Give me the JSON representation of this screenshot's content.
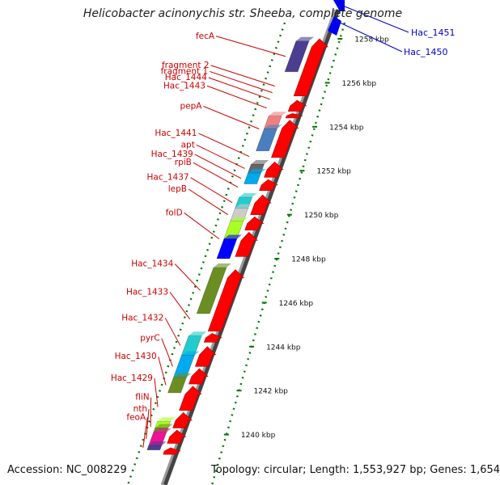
{
  "title": "Helicobacter acinonychis str. Sheeba, complete genome",
  "footer": {
    "accession": "Accession: NC_008229",
    "topology": "Topology: circular; Length: 1,553,927 bp; Genes: 1,654"
  },
  "colors": {
    "forward_gene": "#ff0000",
    "label_red": "#cc0000",
    "label_blue": "#0000cc",
    "tick_green": "#007700",
    "backbone": "#8a8a8a"
  },
  "axis": {
    "range_kbp": [
      1239,
      1259
    ],
    "unit": "kbp"
  },
  "ticks": [
    {
      "label": "1240 kbp",
      "kbp": 1240
    },
    {
      "label": "1242 kbp",
      "kbp": 1242
    },
    {
      "label": "1244 kbp",
      "kbp": 1244
    },
    {
      "label": "1246 kbp",
      "kbp": 1246
    },
    {
      "label": "1248 kbp",
      "kbp": 1248
    },
    {
      "label": "1250 kbp",
      "kbp": 1250
    },
    {
      "label": "1252 kbp",
      "kbp": 1252
    },
    {
      "label": "1254 kbp",
      "kbp": 1254
    },
    {
      "label": "1256 kbp",
      "kbp": 1256
    },
    {
      "label": "1258 kbp",
      "kbp": 1258
    }
  ],
  "features_reverse": [
    {
      "label": "fecA",
      "color": "#4b3d8f",
      "start_kbp": 1256.5,
      "end_kbp": 1257.9
    },
    {
      "label": "fragment 2",
      "color": null,
      "start_kbp": 1255.8,
      "end_kbp": 1255.9
    },
    {
      "label": "fragment 1",
      "color": null,
      "start_kbp": 1255.5,
      "end_kbp": 1255.6
    },
    {
      "label": "Hac_1444",
      "color": null,
      "start_kbp": 1255.2,
      "end_kbp": 1255.3
    },
    {
      "label": "Hac_1443",
      "color": null,
      "start_kbp": 1254.8,
      "end_kbp": 1254.9
    },
    {
      "label": "pepA",
      "color": "#f08080",
      "start_kbp": 1253.9,
      "end_kbp": 1254.5
    },
    {
      "label": "pepA",
      "color": "#4a7fbf",
      "start_kbp": 1252.9,
      "end_kbp": 1253.9
    },
    {
      "label": "Hac_1441",
      "color": null,
      "start_kbp": 1252.6,
      "end_kbp": 1252.7
    },
    {
      "label": "apt",
      "color": "#666666",
      "start_kbp": 1251.9,
      "end_kbp": 1252.3
    },
    {
      "label": "Hac_1439",
      "color": "#00aaee",
      "start_kbp": 1251.4,
      "end_kbp": 1251.9
    },
    {
      "label": "rpiB",
      "color": null,
      "start_kbp": 1251.2,
      "end_kbp": 1251.3
    },
    {
      "label": "Hac_1437",
      "color": "#22cccc",
      "start_kbp": 1250.3,
      "end_kbp": 1250.8
    },
    {
      "label": "lepB",
      "color": "#cccccc",
      "start_kbp": 1249.7,
      "end_kbp": 1250.3
    },
    {
      "label": "folD",
      "color": "#aaff22",
      "start_kbp": 1248.9,
      "end_kbp": 1249.7
    },
    {
      "label": "folD",
      "color": "#0000ff",
      "start_kbp": 1248.0,
      "end_kbp": 1248.9
    },
    {
      "label": "Hac_1434",
      "color": "#6b8e23",
      "start_kbp": 1245.5,
      "end_kbp": 1247.6
    },
    {
      "label": "Hac_1433",
      "color": null,
      "start_kbp": 1245.2,
      "end_kbp": 1245.3
    },
    {
      "label": "Hac_1432",
      "color": "#22cccc",
      "start_kbp": 1243.6,
      "end_kbp": 1244.5
    },
    {
      "label": "pyrC",
      "color": "#00aaee",
      "start_kbp": 1242.6,
      "end_kbp": 1243.6
    },
    {
      "label": "Hac_1430",
      "color": "#6b8e23",
      "start_kbp": 1241.9,
      "end_kbp": 1242.6
    },
    {
      "label": "Hac_1429",
      "color": null,
      "start_kbp": 1241.2,
      "end_kbp": 1241.3
    },
    {
      "label": "fliN",
      "color": "#aaff22",
      "start_kbp": 1240.3,
      "end_kbp": 1240.6
    },
    {
      "label": "fliN",
      "color": "#6b8e23",
      "start_kbp": 1240.1,
      "end_kbp": 1240.3
    },
    {
      "label": "nth",
      "color": "#ee1199",
      "start_kbp": 1239.5,
      "end_kbp": 1240.1
    },
    {
      "label": "feoA",
      "color": "#4b3d8f",
      "start_kbp": 1239.3,
      "end_kbp": 1239.5
    }
  ],
  "feature_labels": [
    {
      "text": "fecA",
      "kbp": 1257.2
    },
    {
      "text": "fragment 2",
      "kbp": 1255.85
    },
    {
      "text": "fragment 1",
      "kbp": 1255.55
    },
    {
      "text": "Hac_1444",
      "kbp": 1255.25
    },
    {
      "text": "Hac_1443",
      "kbp": 1254.85
    },
    {
      "text": "pepA",
      "kbp": 1253.9
    },
    {
      "text": "Hac_1441",
      "kbp": 1252.65
    },
    {
      "text": "apt",
      "kbp": 1252.1
    },
    {
      "text": "Hac_1439",
      "kbp": 1251.65
    },
    {
      "text": "rpiB",
      "kbp": 1251.25
    },
    {
      "text": "Hac_1437",
      "kbp": 1250.55
    },
    {
      "text": "lepB",
      "kbp": 1250.0
    },
    {
      "text": "folD",
      "kbp": 1248.9
    },
    {
      "text": "Hac_1434",
      "kbp": 1246.55
    },
    {
      "text": "Hac_1433",
      "kbp": 1245.25
    },
    {
      "text": "Hac_1432",
      "kbp": 1244.05
    },
    {
      "text": "pyrC",
      "kbp": 1243.1
    },
    {
      "text": "Hac_1430",
      "kbp": 1242.25
    },
    {
      "text": "Hac_1429",
      "kbp": 1241.25
    },
    {
      "text": "fliN",
      "kbp": 1240.35
    },
    {
      "text": "nth",
      "kbp": 1239.8
    },
    {
      "text": "feoA",
      "kbp": 1239.4
    }
  ],
  "forward_arrows": [
    {
      "start_kbp": 1255.4,
      "end_kbp": 1258.0
    },
    {
      "start_kbp": 1254.7,
      "end_kbp": 1255.2
    },
    {
      "start_kbp": 1254.4,
      "end_kbp": 1254.6
    },
    {
      "start_kbp": 1252.6,
      "end_kbp": 1254.3
    },
    {
      "start_kbp": 1251.7,
      "end_kbp": 1252.4
    },
    {
      "start_kbp": 1251.1,
      "end_kbp": 1251.6
    },
    {
      "start_kbp": 1250.0,
      "end_kbp": 1250.9
    },
    {
      "start_kbp": 1249.3,
      "end_kbp": 1249.9
    },
    {
      "start_kbp": 1248.1,
      "end_kbp": 1249.2
    },
    {
      "start_kbp": 1244.7,
      "end_kbp": 1247.5
    },
    {
      "start_kbp": 1244.2,
      "end_kbp": 1244.6
    },
    {
      "start_kbp": 1243.1,
      "end_kbp": 1244.0
    },
    {
      "start_kbp": 1242.3,
      "end_kbp": 1243.0
    },
    {
      "start_kbp": 1241.1,
      "end_kbp": 1242.2
    },
    {
      "start_kbp": 1240.3,
      "end_kbp": 1241.0
    },
    {
      "start_kbp": 1239.6,
      "end_kbp": 1240.2
    },
    {
      "start_kbp": 1239.1,
      "end_kbp": 1239.4
    }
  ],
  "overflow_genes": [
    {
      "label": "Hac_1451",
      "color": "#0000ff"
    },
    {
      "label": "Hac_1450",
      "color": "#0000ff"
    }
  ]
}
